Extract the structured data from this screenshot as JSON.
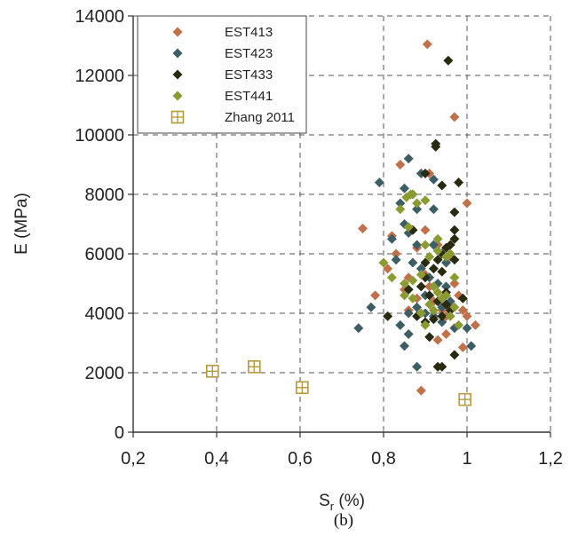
{
  "chart_data": {
    "type": "scatter",
    "title": "",
    "xlabel": {
      "main": "S",
      "sub": "r",
      "unit": " (%)"
    },
    "ylabel": "E (MPa)",
    "caption": "(b)",
    "xlim": [
      0.2,
      1.2
    ],
    "ylim": [
      0,
      14000
    ],
    "xticks": [
      0.2,
      0.4,
      0.6,
      0.8,
      1.0,
      1.2
    ],
    "xtick_labels": [
      "0,2",
      "0,4",
      "0,6",
      "0,8",
      "1",
      "1,2"
    ],
    "yticks": [
      0,
      2000,
      4000,
      6000,
      8000,
      10000,
      12000,
      14000
    ],
    "ytick_labels": [
      "0",
      "2000",
      "4000",
      "6000",
      "8000",
      "10000",
      "12000",
      "14000"
    ],
    "grid": true,
    "legend_position": "top-left",
    "series": [
      {
        "name": "EST413",
        "color": "#c0714a",
        "marker": "diamond",
        "points": [
          [
            0.905,
            13050
          ],
          [
            0.97,
            10600
          ],
          [
            1.0,
            7700
          ],
          [
            0.75,
            6850
          ],
          [
            0.82,
            6600
          ],
          [
            0.83,
            6000
          ],
          [
            0.81,
            5500
          ],
          [
            0.78,
            4600
          ],
          [
            0.85,
            4800
          ],
          [
            0.86,
            5200
          ],
          [
            0.87,
            6800
          ],
          [
            0.88,
            6200
          ],
          [
            0.9,
            5300
          ],
          [
            0.91,
            4900
          ],
          [
            0.92,
            4400
          ],
          [
            0.93,
            6300
          ],
          [
            0.94,
            4100
          ],
          [
            0.95,
            3900
          ],
          [
            0.96,
            5900
          ],
          [
            0.97,
            5000
          ],
          [
            0.98,
            4600
          ],
          [
            0.99,
            4100
          ],
          [
            1.0,
            3900
          ],
          [
            1.02,
            3600
          ],
          [
            0.99,
            2850
          ],
          [
            0.89,
            1400
          ],
          [
            0.93,
            3100
          ],
          [
            0.95,
            3300
          ],
          [
            0.84,
            9000
          ],
          [
            0.91,
            8700
          ],
          [
            0.86,
            4100
          ],
          [
            0.9,
            6800
          ],
          [
            0.94,
            6000
          ],
          [
            0.88,
            4500
          ],
          [
            0.96,
            4200
          ]
        ]
      },
      {
        "name": "EST423",
        "color": "#3e5e66",
        "marker": "diamond",
        "points": [
          [
            0.86,
            9200
          ],
          [
            0.79,
            8400
          ],
          [
            0.85,
            8200
          ],
          [
            0.87,
            8000
          ],
          [
            0.84,
            7700
          ],
          [
            0.88,
            7500
          ],
          [
            0.92,
            7500
          ],
          [
            0.92,
            8500
          ],
          [
            0.89,
            8700
          ],
          [
            0.85,
            7000
          ],
          [
            0.86,
            6700
          ],
          [
            0.88,
            6300
          ],
          [
            0.82,
            6500
          ],
          [
            0.87,
            5700
          ],
          [
            0.89,
            5500
          ],
          [
            0.91,
            5200
          ],
          [
            0.93,
            5000
          ],
          [
            0.95,
            5700
          ],
          [
            0.96,
            4400
          ],
          [
            0.94,
            4200
          ],
          [
            0.92,
            3900
          ],
          [
            0.9,
            4000
          ],
          [
            0.88,
            4200
          ],
          [
            0.86,
            4000
          ],
          [
            0.84,
            3600
          ],
          [
            0.77,
            4200
          ],
          [
            0.74,
            3500
          ],
          [
            0.86,
            3300
          ],
          [
            0.85,
            2900
          ],
          [
            0.88,
            2200
          ],
          [
            0.94,
            3700
          ],
          [
            0.97,
            3500
          ],
          [
            1.0,
            3500
          ],
          [
            1.01,
            2900
          ],
          [
            0.9,
            4600
          ],
          [
            0.92,
            6300
          ],
          [
            0.83,
            5800
          ],
          [
            0.95,
            4900
          ]
        ]
      },
      {
        "name": "EST433",
        "color": "#2a2a12",
        "marker": "diamond",
        "points": [
          [
            0.955,
            12500
          ],
          [
            0.925,
            9700
          ],
          [
            0.925,
            9600
          ],
          [
            0.9,
            8700
          ],
          [
            0.98,
            8400
          ],
          [
            0.94,
            8300
          ],
          [
            0.97,
            7400
          ],
          [
            0.97,
            6800
          ],
          [
            0.97,
            6500
          ],
          [
            0.96,
            6300
          ],
          [
            0.95,
            6200
          ],
          [
            0.94,
            6000
          ],
          [
            0.93,
            5800
          ],
          [
            0.92,
            5500
          ],
          [
            0.94,
            5400
          ],
          [
            0.97,
            5800
          ],
          [
            0.9,
            5200
          ],
          [
            0.89,
            4900
          ],
          [
            0.91,
            4600
          ],
          [
            0.93,
            4400
          ],
          [
            0.95,
            4300
          ],
          [
            0.96,
            4100
          ],
          [
            0.94,
            3900
          ],
          [
            0.92,
            3800
          ],
          [
            0.9,
            3700
          ],
          [
            0.88,
            3900
          ],
          [
            0.86,
            4800
          ],
          [
            0.87,
            6800
          ],
          [
            0.81,
            3900
          ],
          [
            0.93,
            2200
          ],
          [
            0.94,
            2200
          ],
          [
            0.97,
            2600
          ],
          [
            0.91,
            3200
          ],
          [
            0.99,
            4500
          ],
          [
            0.95,
            4700
          ],
          [
            0.9,
            5700
          ]
        ]
      },
      {
        "name": "EST441",
        "color": "#8c9a32",
        "marker": "diamond",
        "points": [
          [
            0.865,
            8000
          ],
          [
            0.855,
            7900
          ],
          [
            0.87,
            8000
          ],
          [
            0.84,
            7500
          ],
          [
            0.88,
            7700
          ],
          [
            0.9,
            7800
          ],
          [
            0.86,
            6900
          ],
          [
            0.9,
            6300
          ],
          [
            0.91,
            5900
          ],
          [
            0.93,
            6100
          ],
          [
            0.8,
            5700
          ],
          [
            0.82,
            5200
          ],
          [
            0.85,
            5000
          ],
          [
            0.87,
            5100
          ],
          [
            0.89,
            5300
          ],
          [
            0.92,
            4900
          ],
          [
            0.93,
            4700
          ],
          [
            0.95,
            4600
          ],
          [
            0.97,
            4200
          ],
          [
            0.96,
            3900
          ],
          [
            0.94,
            4500
          ],
          [
            0.91,
            4300
          ],
          [
            0.89,
            4000
          ],
          [
            0.87,
            4500
          ],
          [
            0.85,
            4600
          ],
          [
            0.98,
            3600
          ],
          [
            0.97,
            5200
          ],
          [
            0.95,
            5900
          ],
          [
            0.93,
            6500
          ],
          [
            0.96,
            6000
          ],
          [
            0.92,
            4100
          ],
          [
            0.9,
            3600
          ]
        ]
      },
      {
        "name": "Zhang 2011",
        "color": "#b59a3e",
        "marker": "square-plus",
        "points": [
          [
            0.39,
            2050
          ],
          [
            0.49,
            2200
          ],
          [
            0.605,
            1500
          ],
          [
            0.995,
            1100
          ]
        ]
      }
    ]
  }
}
